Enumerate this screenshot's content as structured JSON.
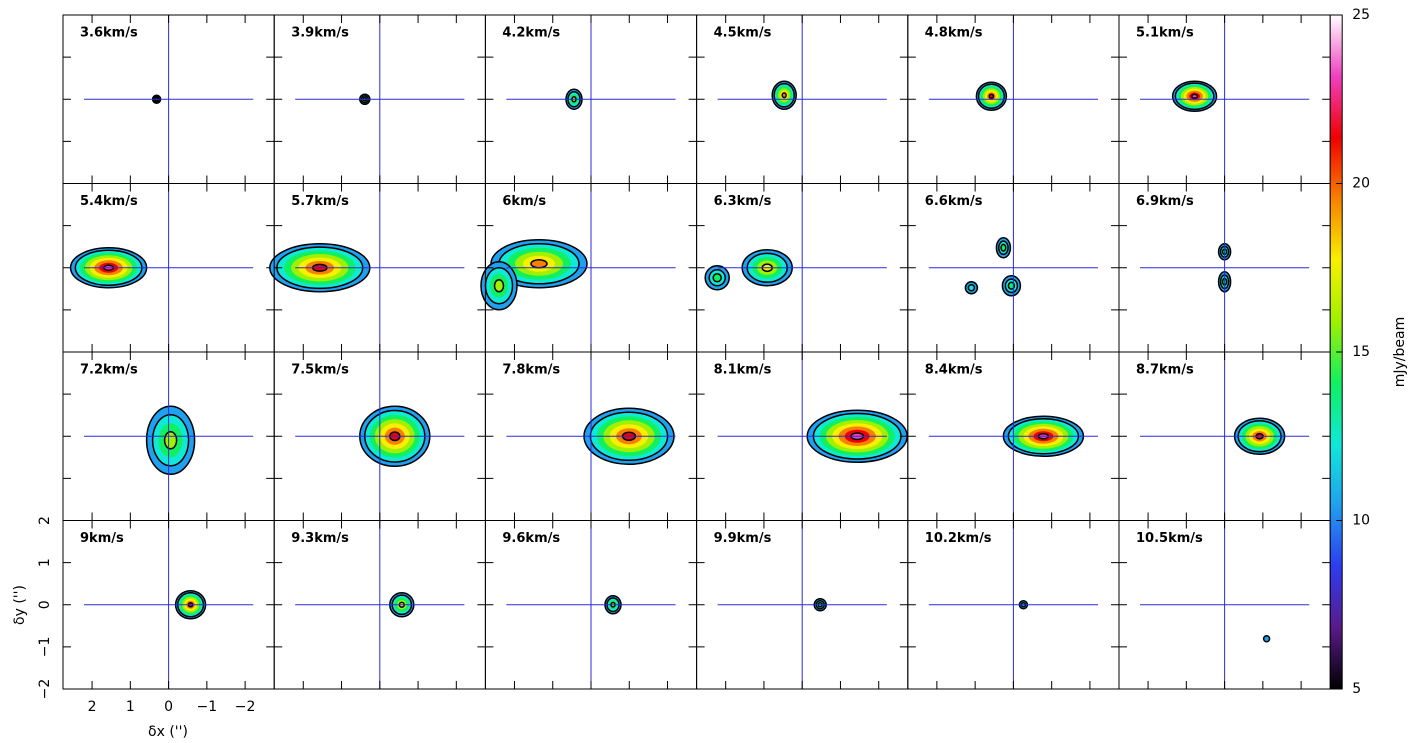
{
  "chart_data": {
    "type": "channel_map",
    "panels": [
      "3.6km/s",
      "3.9km/s",
      "4.2km/s",
      "4.5km/s",
      "4.8km/s",
      "5.1km/s",
      "5.4km/s",
      "5.7km/s",
      "6km/s",
      "6.3km/s",
      "6.6km/s",
      "6.9km/s",
      "7.2km/s",
      "7.5km/s",
      "7.8km/s",
      "8.1km/s",
      "8.4km/s",
      "8.7km/s",
      "9km/s",
      "9.3km/s",
      "9.6km/s",
      "9.9km/s",
      "10.2km/s",
      "10.5km/s"
    ],
    "columns": 6,
    "xlabel": "δx ('')",
    "ylabel": "δy ('')",
    "xlim": [
      2.76,
      -2.76
    ],
    "ylim": [
      -2,
      2
    ],
    "xticks": [
      2,
      1,
      0,
      {
        "value": -1,
        "label": "−1"
      },
      {
        "value": -2,
        "label": "−2"
      }
    ],
    "yticks": [
      {
        "value": -2,
        "label": "−2"
      },
      {
        "value": -1,
        "label": "−1"
      },
      0,
      1,
      2
    ],
    "crosshair_color": "#2b2bd9",
    "colorbar": {
      "label": "mJy/beam",
      "lim": [
        5,
        25
      ],
      "ticks": [
        5,
        10,
        15,
        20,
        25
      ],
      "colors": [
        "#000000",
        "#5a1a8a",
        "#2d3cf0",
        "#20a0f0",
        "#10e8d8",
        "#10f060",
        "#a0f000",
        "#f8f000",
        "#f88000",
        "#f00000",
        "#f040c0",
        "#ffffff"
      ]
    }
  }
}
